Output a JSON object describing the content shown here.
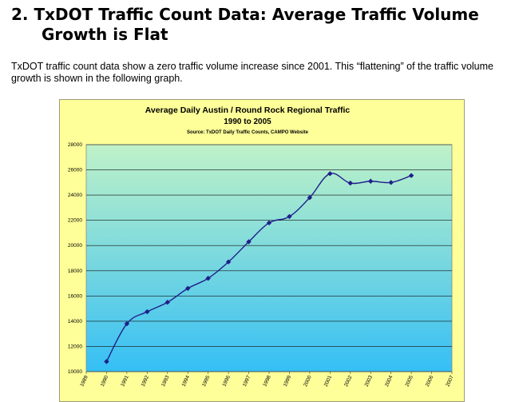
{
  "heading": {
    "number": "2.",
    "line1": "TxDOT Traffic Count Data: Average Traffic Volume",
    "line2": "Growth is Flat"
  },
  "intro": "TxDOT traffic count data show a zero traffic volume increase since 2001. This “flattening” of the traffic volume growth is shown in the following graph.",
  "chart_data": {
    "type": "line",
    "title": "Average Daily Austin / Round Rock Regional Traffic",
    "subtitle": "1990 to 2005",
    "source": "Source: TxDOT Daily Traffic Counts, CAMPO Website",
    "xlabel": "",
    "ylabel": "",
    "categories": [
      "1989",
      "1990",
      "1991",
      "1992",
      "1993",
      "1994",
      "1995",
      "1996",
      "1997",
      "1998",
      "1999",
      "2000",
      "2001",
      "2002",
      "2003",
      "2004",
      "2005",
      "2006",
      "2007"
    ],
    "series": [
      {
        "x": [
          "1990",
          "1991",
          "1992",
          "1993",
          "1994",
          "1995",
          "1996",
          "1997",
          "1998",
          "1999",
          "2000",
          "2001",
          "2002",
          "2003",
          "2004",
          "2005"
        ],
        "values": [
          10800,
          13800,
          14750,
          15500,
          16600,
          17400,
          18700,
          20300,
          21800,
          22300,
          23800,
          25700,
          24950,
          25100,
          25000,
          25550
        ]
      }
    ],
    "ylim": [
      10000,
      28000
    ],
    "yticks": [
      "10000",
      "12000",
      "14000",
      "16000",
      "18000",
      "20000",
      "22000",
      "24000",
      "26000",
      "28000"
    ],
    "grid": true,
    "colors": {
      "line": "#1f1f8a",
      "marker": "#1f1f8a",
      "plot_top": "#bff2c8",
      "plot_bottom": "#35bff5",
      "frame": "#ffff99",
      "gridline": "#111111"
    }
  }
}
